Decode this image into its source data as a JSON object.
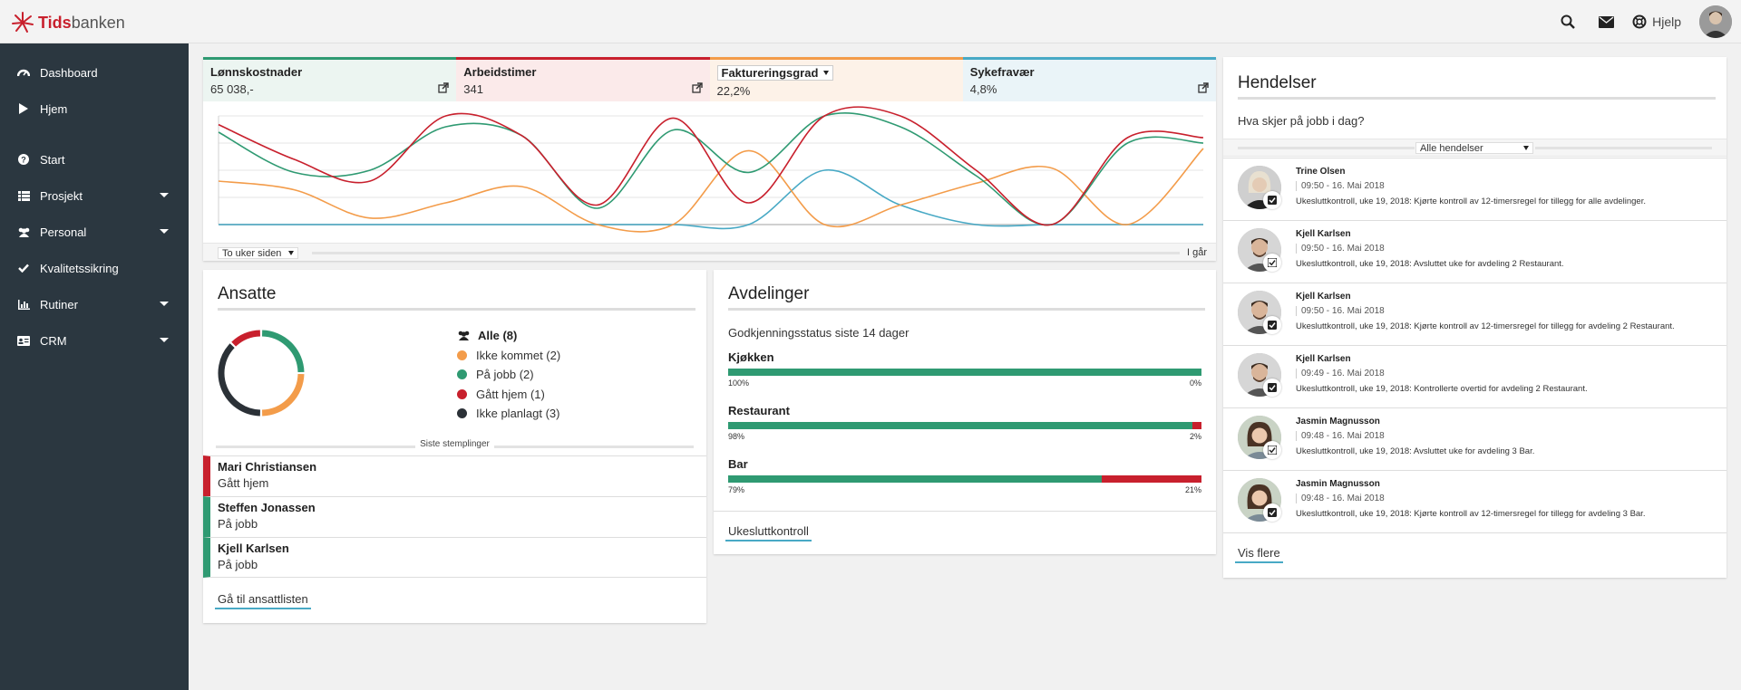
{
  "app": {
    "logo_bold": "Tids",
    "logo_rest": "banken",
    "help_label": "Hjelp"
  },
  "sidebar": {
    "items": [
      {
        "label": "Dashboard",
        "icon": "dashboard-icon"
      },
      {
        "label": "Hjem",
        "icon": "play-icon"
      },
      {
        "label": "Start",
        "icon": "question-icon"
      },
      {
        "label": "Prosjekt",
        "icon": "list-icon"
      },
      {
        "label": "Personal",
        "icon": "users-icon"
      },
      {
        "label": "Kvalitetssikring",
        "icon": "check-icon"
      },
      {
        "label": "Rutiner",
        "icon": "bar-chart-icon"
      },
      {
        "label": "CRM",
        "icon": "id-card-icon"
      }
    ]
  },
  "kpi": {
    "tabs": [
      {
        "label": "Lønnskostnader",
        "value": "65 038,-",
        "color": "#2f9a72"
      },
      {
        "label": "Arbeidstimer",
        "value": "341",
        "color": "#c8202d"
      },
      {
        "label": "Faktureringsgrad",
        "value": "22,2%",
        "color": "#f39c4a"
      },
      {
        "label": "Sykefravær",
        "value": "4,8%",
        "color": "#48a9c5"
      }
    ],
    "range_label": "To uker siden",
    "range_end": "I går"
  },
  "chart_data": {
    "type": "line",
    "x": [
      0,
      1,
      2,
      3,
      4,
      5,
      6,
      7,
      8,
      9,
      10,
      11,
      12,
      13
    ],
    "ylim": [
      0,
      100
    ],
    "grid": true,
    "series": [
      {
        "color": "#c8202d",
        "values": [
          92,
          60,
          40,
          100,
          82,
          18,
          98,
          20,
          100,
          100,
          50,
          0,
          80,
          80
        ]
      },
      {
        "color": "#2f9a72",
        "values": [
          85,
          48,
          50,
          90,
          82,
          15,
          87,
          48,
          100,
          90,
          45,
          0,
          75,
          75
        ]
      },
      {
        "color": "#f39c4a",
        "values": [
          40,
          32,
          6,
          20,
          35,
          0,
          0,
          68,
          0,
          18,
          38,
          52,
          0,
          70
        ]
      },
      {
        "color": "#48a9c5",
        "values": [
          0,
          0,
          0,
          0,
          0,
          0,
          0,
          0,
          50,
          18,
          0,
          0,
          0,
          0
        ]
      }
    ]
  },
  "ansatte": {
    "title": "Ansatte",
    "donut": [
      {
        "label": "Ikke kommet (2)",
        "value": 2,
        "color": "#f39c4a"
      },
      {
        "label": "På jobb (2)",
        "value": 2,
        "color": "#2f9a72"
      },
      {
        "label": "Gått hjem (1)",
        "value": 1,
        "color": "#c8202d"
      },
      {
        "label": "Ikke planlagt (3)",
        "value": 3,
        "color": "#2b3137"
      }
    ],
    "all_label": "Alle (8)",
    "stamp_header": "Siste stemplinger",
    "stamps": [
      {
        "name": "Mari Christiansen",
        "status": "Gått hjem",
        "color": "#c8202d"
      },
      {
        "name": "Steffen Jonassen",
        "status": "På jobb",
        "color": "#2f9a72"
      },
      {
        "name": "Kjell Karlsen",
        "status": "På jobb",
        "color": "#2f9a72"
      }
    ],
    "link": "Gå til ansattlisten"
  },
  "avdelinger": {
    "title": "Avdelinger",
    "subtitle": "Godkjenningsstatus siste 14 dager",
    "departments": [
      {
        "name": "Kjøkken",
        "approved": 100,
        "left_label": "100%",
        "right_label": "0%"
      },
      {
        "name": "Restaurant",
        "approved": 98,
        "left_label": "98%",
        "right_label": "2%"
      },
      {
        "name": "Bar",
        "approved": 79,
        "left_label": "79%",
        "right_label": "21%"
      }
    ],
    "link": "Ukesluttkontroll"
  },
  "hendelser": {
    "title": "Hendelser",
    "subtitle": "Hva skjer på jobb i dag?",
    "filter": "Alle hendelser",
    "events": [
      {
        "name": "Trine Olsen",
        "time": "09:50 - 16. Mai 2018",
        "text": "Ukesluttkontroll, uke 19, 2018: Kjørte kontroll av 12-timersregel for tillegg for alle avdelinger."
      },
      {
        "name": "Kjell Karlsen",
        "time": "09:50 - 16. Mai 2018",
        "text": "Ukesluttkontroll, uke 19, 2018: Avsluttet uke for avdeling 2 Restaurant."
      },
      {
        "name": "Kjell Karlsen",
        "time": "09:50 - 16. Mai 2018",
        "text": "Ukesluttkontroll, uke 19, 2018: Kjørte kontroll av 12-timersregel for tillegg for avdeling 2 Restaurant."
      },
      {
        "name": "Kjell Karlsen",
        "time": "09:49 - 16. Mai 2018",
        "text": "Ukesluttkontroll, uke 19, 2018: Kontrollerte overtid for avdeling 2 Restaurant."
      },
      {
        "name": "Jasmin Magnusson",
        "time": "09:48 - 16. Mai 2018",
        "text": "Ukesluttkontroll, uke 19, 2018: Avsluttet uke for avdeling 3 Bar."
      },
      {
        "name": "Jasmin Magnusson",
        "time": "09:48 - 16. Mai 2018",
        "text": "Ukesluttkontroll, uke 19, 2018: Kjørte kontroll av 12-timersregel for tillegg for avdeling 3 Bar."
      }
    ],
    "link": "Vis flere"
  }
}
